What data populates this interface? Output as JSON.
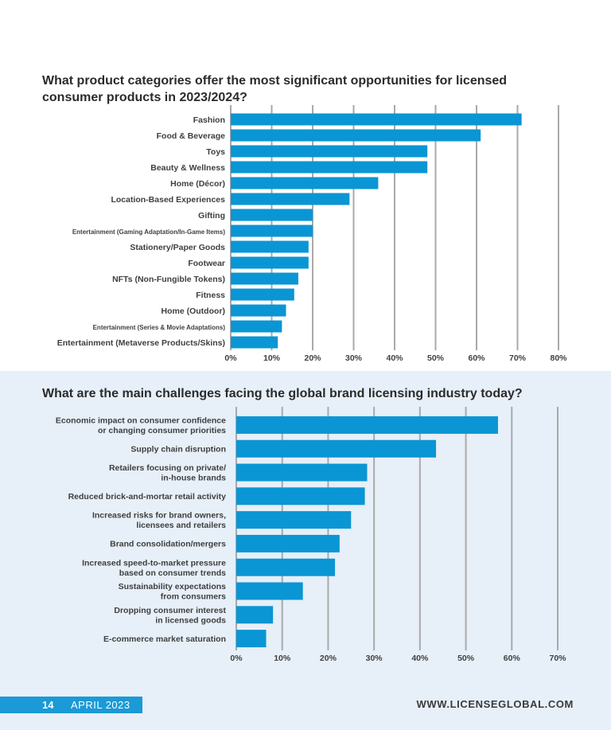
{
  "footer": {
    "page_number": "14",
    "issue": "APRIL 2023",
    "url": "WWW.LICENSEGLOBAL.COM"
  },
  "colors": {
    "bar": "#0a96d4",
    "grid": "#a9a9a9",
    "badge": "#1a9ad6",
    "panel_bg": "#e7eff8"
  },
  "chart_data": [
    {
      "type": "bar",
      "orientation": "horizontal",
      "title": "What product categories offer the most significant opportunities for licensed consumer products in 2023/2024?",
      "categories": [
        "Fashion",
        "Food & Beverage",
        "Toys",
        "Beauty & Wellness",
        "Home (Décor)",
        "Location-Based Experiences",
        "Gifting",
        "Entertainment (Gaming Adaptation/In-Game Items)",
        "Stationery/Paper Goods",
        "Footwear",
        "NFTs (Non-Fungible Tokens)",
        "Fitness",
        "Home (Outdoor)",
        "Entertainment (Series & Movie Adaptations)",
        "Entertainment (Metaverse Products/Skins)"
      ],
      "values": [
        71,
        61,
        48,
        48,
        36,
        29,
        20,
        20,
        19,
        19,
        16.5,
        15.5,
        13.5,
        12.5,
        11.5
      ],
      "xlim": [
        0,
        80
      ],
      "xticks": [
        "0%",
        "10%",
        "20%",
        "30%",
        "40%",
        "50%",
        "60%",
        "70%",
        "80%"
      ],
      "xlabel": "",
      "ylabel": "",
      "grid": true
    },
    {
      "type": "bar",
      "orientation": "horizontal",
      "title": "What are the main challenges facing the global brand licensing industry today?",
      "categories": [
        [
          "Economic impact on consumer confidence",
          "or changing consumer priorities"
        ],
        [
          "Supply chain disruption"
        ],
        [
          "Retailers focusing on private/",
          "in-house brands"
        ],
        [
          "Reduced brick-and-mortar retail activity"
        ],
        [
          "Increased risks for brand owners,",
          "licensees and retailers"
        ],
        [
          "Brand consolidation/mergers"
        ],
        [
          "Increased speed-to-market pressure",
          "based on consumer trends"
        ],
        [
          "Sustainability expectations",
          "from consumers"
        ],
        [
          "Dropping consumer interest",
          "in licensed goods"
        ],
        [
          "E-commerce market saturation"
        ]
      ],
      "values": [
        57,
        43.5,
        28.5,
        28,
        25,
        22.5,
        21.5,
        14.5,
        8,
        6.5
      ],
      "xlim": [
        0,
        70
      ],
      "xticks": [
        "0%",
        "10%",
        "20%",
        "30%",
        "40%",
        "50%",
        "60%",
        "70%"
      ],
      "xlabel": "",
      "ylabel": "",
      "grid": true
    }
  ]
}
